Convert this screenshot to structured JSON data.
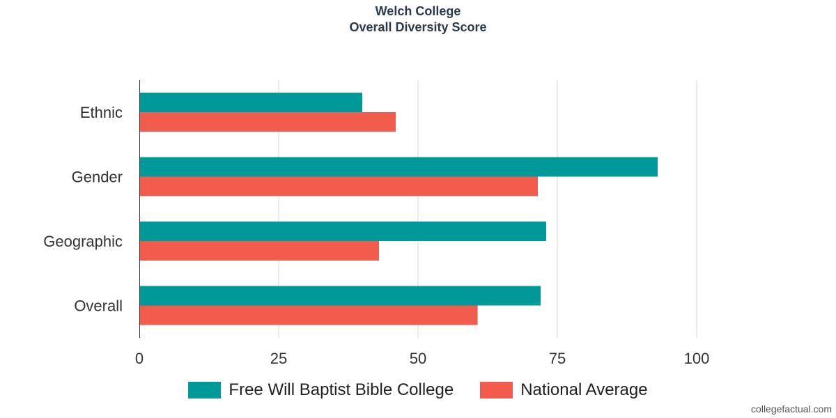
{
  "chart_data": {
    "type": "bar",
    "orientation": "horizontal",
    "title": "Welch College",
    "subtitle": "Overall Diversity Score",
    "categories": [
      "Ethnic",
      "Gender",
      "Geographic",
      "Overall"
    ],
    "series": [
      {
        "name": "Free Will Baptist Bible College",
        "color": "#009999",
        "values": [
          40,
          93,
          73,
          72
        ]
      },
      {
        "name": "National Average",
        "color": "#f15c4c",
        "values": [
          46,
          71.5,
          43,
          60.7
        ]
      }
    ],
    "xlim": [
      0,
      100
    ],
    "xticks": [
      "0",
      "25",
      "50",
      "75",
      "100"
    ],
    "grid": true,
    "legend_position": "bottom"
  },
  "watermark": "collegefactual.com"
}
